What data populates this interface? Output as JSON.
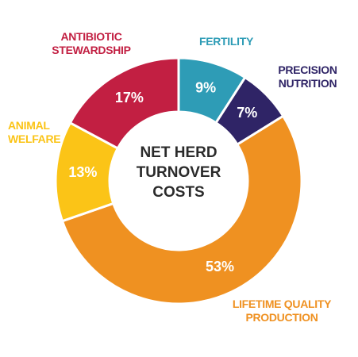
{
  "chart_data": {
    "type": "pie",
    "center_text": "NET HERD TURNOVER COSTS",
    "categories": [
      "FERTILITY",
      "PRECISION NUTRITION",
      "LIFETIME QUALITY PRODUCTION",
      "ANIMAL WELFARE",
      "ANTIBIOTIC STEWARDSHIP"
    ],
    "values": [
      9,
      7,
      53,
      13,
      17
    ],
    "value_labels": [
      "9%",
      "7%",
      "53%",
      "13%",
      "17%"
    ],
    "colors": [
      "#2e9cb6",
      "#2f2466",
      "#ef9121",
      "#fbc417",
      "#c21f42"
    ]
  }
}
